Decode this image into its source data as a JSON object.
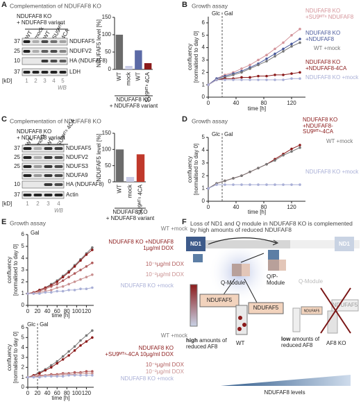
{
  "panel_letters": [
    "A",
    "B",
    "C",
    "D",
    "E",
    "F"
  ],
  "blots": [
    {
      "title": "Complementation of NDUFAF8 KO",
      "subtitle": [
        "NDUFAF8 KO",
        "+ NDUFAF8 variant"
      ],
      "lanes": [
        "WT",
        "mock",
        "WT",
        "SU9ᴹᵀˢ",
        "4CA"
      ],
      "rows": [
        {
          "protein": "NDUFAF5",
          "marker": "37"
        },
        {
          "protein": "NDUFV2",
          "marker": "25"
        },
        {
          "protein": "HA (NDUFAF8)",
          "marker": "10"
        },
        {
          "protein": "LDH",
          "marker": "37"
        }
      ],
      "unit": "[kD]",
      "lane_numbers": [
        "1",
        "2",
        "3",
        "4",
        "5"
      ],
      "footer": "WB"
    },
    {
      "title": "Complementation of NDUFAF8 KO",
      "subtitle": [
        "NDUFAF8 KO",
        "+ NDUFAF8 variant"
      ],
      "lanes": [
        "WT",
        "mock",
        "WT",
        "SU9ᴹᵀˢ 4CA"
      ],
      "rows": [
        {
          "protein": "NDUFAF5",
          "marker": "37"
        },
        {
          "protein": "NDUFV2",
          "marker": "25"
        },
        {
          "protein": "NDUFS3",
          "marker": "25"
        },
        {
          "protein": "NDUFA9"
        },
        {
          "protein": "HA (NDUFAF8)",
          "marker": "10"
        },
        {
          "protein": "Actin",
          "marker": "37"
        }
      ],
      "unit": "[kD]",
      "lane_numbers": [
        "1",
        "2",
        "3",
        "4"
      ],
      "footer": "WB"
    }
  ],
  "chart_data": [
    {
      "type": "bar",
      "ylabel": "NDUFAF5 level [%]",
      "categories": [
        "WT",
        "mock",
        "WT",
        "SU9ᴹᵀˢ 4CA"
      ],
      "values": [
        100,
        10,
        55,
        18
      ],
      "colors": [
        "#6b6b6b",
        "#c9cce6",
        "#5b6aa6",
        "#8b1a1a"
      ],
      "ylim": [
        0,
        150
      ],
      "yticks": [
        0,
        50,
        100,
        150
      ],
      "note": [
        "NDUFAF8 KO",
        "+ NDUFAF8 variant"
      ]
    },
    {
      "type": "line",
      "title": "Growth assay",
      "xlabel": "time [h]",
      "ylabel": [
        "confluency",
        "[normalised to day 0]"
      ],
      "annotations": [
        "Glc",
        "Gal"
      ],
      "switch_x": 20,
      "x": [
        0,
        12,
        24,
        36,
        48,
        60,
        72,
        84,
        96,
        108,
        120,
        132
      ],
      "xlim": [
        0,
        140
      ],
      "xticks": [
        0,
        40,
        80,
        120
      ],
      "ylim": [
        0,
        6.5
      ],
      "yticks": [
        0,
        1,
        2,
        3,
        4,
        5,
        6
      ],
      "series": [
        {
          "name": "NDUFAF8 KO +SU9ᴹᵀˢ NDUFAF8",
          "color": "#d4949a",
          "values": [
            1,
            1.5,
            1.8,
            2.0,
            2.3,
            2.6,
            3.0,
            3.4,
            3.9,
            4.4,
            5.0,
            5.5
          ]
        },
        {
          "name": "NDUFAF8 KO +NDUFAF8",
          "color": "#4a5a9c",
          "values": [
            1,
            1.5,
            1.7,
            1.9,
            2.1,
            2.4,
            2.7,
            3.1,
            3.5,
            3.9,
            4.3,
            4.7
          ]
        },
        {
          "name": "WT +mock",
          "color": "#777777",
          "values": [
            1,
            1.4,
            1.6,
            1.8,
            2.0,
            2.3,
            2.6,
            2.9,
            3.3,
            3.7,
            4.1,
            4.4
          ]
        },
        {
          "name": "NDUFAF8 KO +NDUFAF8-4CA",
          "color": "#8b1a1a",
          "values": [
            1,
            1.4,
            1.5,
            1.5,
            1.6,
            1.6,
            1.7,
            1.7,
            1.8,
            1.8,
            1.9,
            2.0
          ]
        },
        {
          "name": "NDUFAF8 KO +mock",
          "color": "#a9afd6",
          "values": [
            1,
            1.4,
            1.4,
            1.4,
            1.4,
            1.4,
            1.4,
            1.4,
            1.4,
            1.4,
            1.5,
            1.5
          ]
        }
      ]
    },
    {
      "type": "bar",
      "ylabel": "NDUFAF5 level [%]",
      "categories": [
        "WT",
        "mock",
        "SU9ᴹᵀˢ 4CA"
      ],
      "values": [
        100,
        15,
        85
      ],
      "colors": [
        "#6b6b6b",
        "#c9cce6",
        "#c0392b"
      ],
      "ylim": [
        0,
        150
      ],
      "yticks": [
        0,
        50,
        100,
        150
      ],
      "note": [
        "NDUFAF8 KO",
        "+ NDUFAF8 variant"
      ]
    },
    {
      "type": "line",
      "title": "Growth assay",
      "xlabel": "time [h]",
      "ylabel": [
        "confluency",
        "[normalised to day 0]"
      ],
      "annotations": [
        "Glc",
        "Gal"
      ],
      "switch_x": 20,
      "x": [
        0,
        12,
        24,
        36,
        48,
        60,
        72,
        84,
        96,
        108,
        120,
        132
      ],
      "xlim": [
        0,
        140
      ],
      "xticks": [
        0,
        40,
        80,
        120
      ],
      "ylim": [
        0,
        5
      ],
      "yticks": [
        0,
        1,
        2,
        3,
        4,
        5
      ],
      "series": [
        {
          "name": "NDUFAF8 KO +NDUFAF8-SU9ᴹᵀˢ-4CA",
          "color": "#8b1a1a",
          "values": [
            1,
            1.4,
            1.6,
            1.8,
            2.0,
            2.3,
            2.6,
            2.9,
            3.3,
            3.7,
            4.1,
            4.4
          ]
        },
        {
          "name": "WT +mock",
          "color": "#777777",
          "values": [
            1,
            1.4,
            1.6,
            1.8,
            2.0,
            2.3,
            2.6,
            2.9,
            3.2,
            3.6,
            3.9,
            4.2
          ]
        },
        {
          "name": "NDUFAF8 KO +mock",
          "color": "#a9afd6",
          "values": [
            1,
            1.3,
            1.3,
            1.3,
            1.3,
            1.3,
            1.3,
            1.3,
            1.3,
            1.3,
            1.3,
            1.3
          ]
        }
      ]
    },
    {
      "type": "line",
      "title": "Growth assay",
      "xlabel": "time [h]",
      "ylabel": [
        "confluency",
        "[normalised to day 0]"
      ],
      "annotations": [
        "Gal"
      ],
      "x": [
        0,
        12,
        24,
        36,
        48,
        60,
        72,
        84,
        96,
        108,
        120,
        132
      ],
      "xlim": [
        0,
        135
      ],
      "xticks": [
        0,
        20,
        40,
        60,
        80,
        100,
        120
      ],
      "ylim": [
        0,
        6
      ],
      "yticks": [
        0,
        1,
        2,
        3,
        4,
        5,
        6
      ],
      "series": [
        {
          "name": "WT +mock",
          "color": "#777777",
          "values": [
            1,
            1.1,
            1.3,
            1.5,
            1.8,
            2.1,
            2.5,
            2.9,
            3.4,
            3.9,
            4.4,
            4.9
          ]
        },
        {
          "name": "NDUFAF8 KO +NDUFAF8 1µg/ml DOX",
          "color": "#8b1a1a",
          "values": [
            1,
            1.1,
            1.3,
            1.5,
            1.7,
            2.0,
            2.4,
            2.8,
            3.3,
            3.8,
            4.3,
            4.7
          ]
        },
        {
          "name": "10⁻¹µg/ml DOX",
          "color": "#b05a5a",
          "values": [
            1,
            1.1,
            1.2,
            1.4,
            1.6,
            1.8,
            2.1,
            2.4,
            2.7,
            3.0,
            3.3,
            3.6
          ]
        },
        {
          "name": "10⁻²µg/ml DOX",
          "color": "#c99090",
          "values": [
            1,
            1.0,
            1.1,
            1.2,
            1.3,
            1.5,
            1.6,
            1.8,
            2.0,
            2.2,
            2.4,
            2.6
          ]
        },
        {
          "name": "NDUFAF8 KO +mock",
          "color": "#a9afd6",
          "values": [
            1,
            1.0,
            1.0,
            1.1,
            1.1,
            1.2,
            1.2,
            1.3,
            1.3,
            1.4,
            1.4,
            1.5
          ]
        }
      ]
    },
    {
      "type": "line",
      "xlabel": "time [h]",
      "ylabel": [
        "confluency",
        "[normalised to day 0]"
      ],
      "annotations": [
        "Glc",
        "Gal"
      ],
      "switch_x": 20,
      "x": [
        0,
        12,
        24,
        36,
        48,
        60,
        72,
        84,
        96,
        108,
        120,
        132
      ],
      "xlim": [
        0,
        135
      ],
      "xticks": [
        0,
        20,
        40,
        60,
        80,
        100,
        120
      ],
      "ylim": [
        0,
        6
      ],
      "yticks": [
        0,
        1,
        2,
        3,
        4,
        5,
        6
      ],
      "series": [
        {
          "name": "WT +mock",
          "color": "#777777",
          "values": [
            1,
            1.2,
            1.5,
            1.8,
            2.2,
            2.6,
            3.1,
            3.6,
            4.1,
            4.7,
            5.2,
            5.7
          ]
        },
        {
          "name": "NDUFAF8 KO +SU9ᴹᵀˢ-4CA 10µg/ml DOX",
          "color": "#8b1a1a",
          "values": [
            1,
            1.2,
            1.4,
            1.7,
            2.0,
            2.4,
            2.8,
            3.2,
            3.7,
            4.2,
            4.6,
            5.0
          ]
        },
        {
          "name": "10⁻¹µg/ml DOX",
          "color": "#b05a5a",
          "values": [
            1,
            1.1,
            1.2,
            1.2,
            1.3,
            1.3,
            1.4,
            1.4,
            1.5,
            1.5,
            1.6,
            1.6
          ]
        },
        {
          "name": "10⁻²µg/ml DOX",
          "color": "#c99090",
          "values": [
            1,
            1.1,
            1.1,
            1.2,
            1.2,
            1.2,
            1.3,
            1.3,
            1.3,
            1.4,
            1.4,
            1.4
          ]
        },
        {
          "name": "NDUFAF8 KO +mock",
          "color": "#a9afd6",
          "values": [
            1,
            1.0,
            1.0,
            1.1,
            1.1,
            1.1,
            1.1,
            1.2,
            1.2,
            1.2,
            1.2,
            1.2
          ]
        }
      ]
    }
  ],
  "diagram": {
    "title": "Loss of ND1 and Q module in NDUFAF8 KO is complemented by high amounts of reduced NDUFAF8",
    "nd1": "ND1",
    "nd1_ko": "ND1",
    "q_module": "Q-Module",
    "qp_module": "Q/P-Module",
    "q_module_ko": "Q-Module",
    "af5_high": "NDUFAF5",
    "af5_wt": "NDUFAF5",
    "af5_low": "NDUFAF5",
    "af5_ko": "NDUFAF5",
    "high_bold": "high",
    "high_rest": "amounts of reduced AF8",
    "wt": "WT",
    "low_bold": "low",
    "low_rest": "amounts of reduced AF8",
    "ko": "AF8 KO",
    "levels": "NDUFAF8 levels"
  }
}
